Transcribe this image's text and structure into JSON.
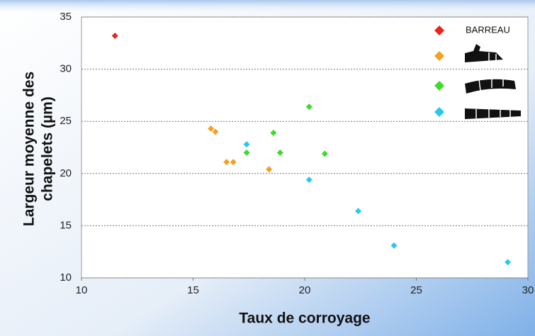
{
  "chart_data": {
    "type": "scatter",
    "xlabel": "Taux de corroyage",
    "ylabel": [
      "Largeur moyenne des",
      "chapelets (µm)"
    ],
    "xlim": [
      10,
      30
    ],
    "xticks": [
      10,
      15,
      20,
      25,
      30
    ],
    "ylim": [
      10,
      35
    ],
    "yticks": [
      10,
      15,
      20,
      25,
      30,
      35
    ],
    "grid": true,
    "legend": "upper right",
    "series": [
      {
        "name": "BARREAU",
        "color": "#e8241c",
        "x": [
          11.5
        ],
        "values": [
          33.2
        ]
      },
      {
        "color": "#f5a020",
        "x": [
          15.8,
          16.0,
          16.5,
          16.8,
          18.4
        ],
        "values": [
          24.3,
          24.0,
          21.1,
          21.1,
          20.4
        ]
      },
      {
        "color": "#3ddc2a",
        "x": [
          20.2,
          18.6,
          17.4,
          18.9,
          20.9
        ],
        "values": [
          26.4,
          23.9,
          22.0,
          22.0,
          21.9
        ]
      },
      {
        "color": "#28c8f0",
        "x": [
          17.4,
          20.2,
          22.4,
          24.0,
          29.1
        ],
        "values": [
          22.8,
          19.4,
          16.4,
          13.1,
          11.5
        ]
      }
    ]
  }
}
